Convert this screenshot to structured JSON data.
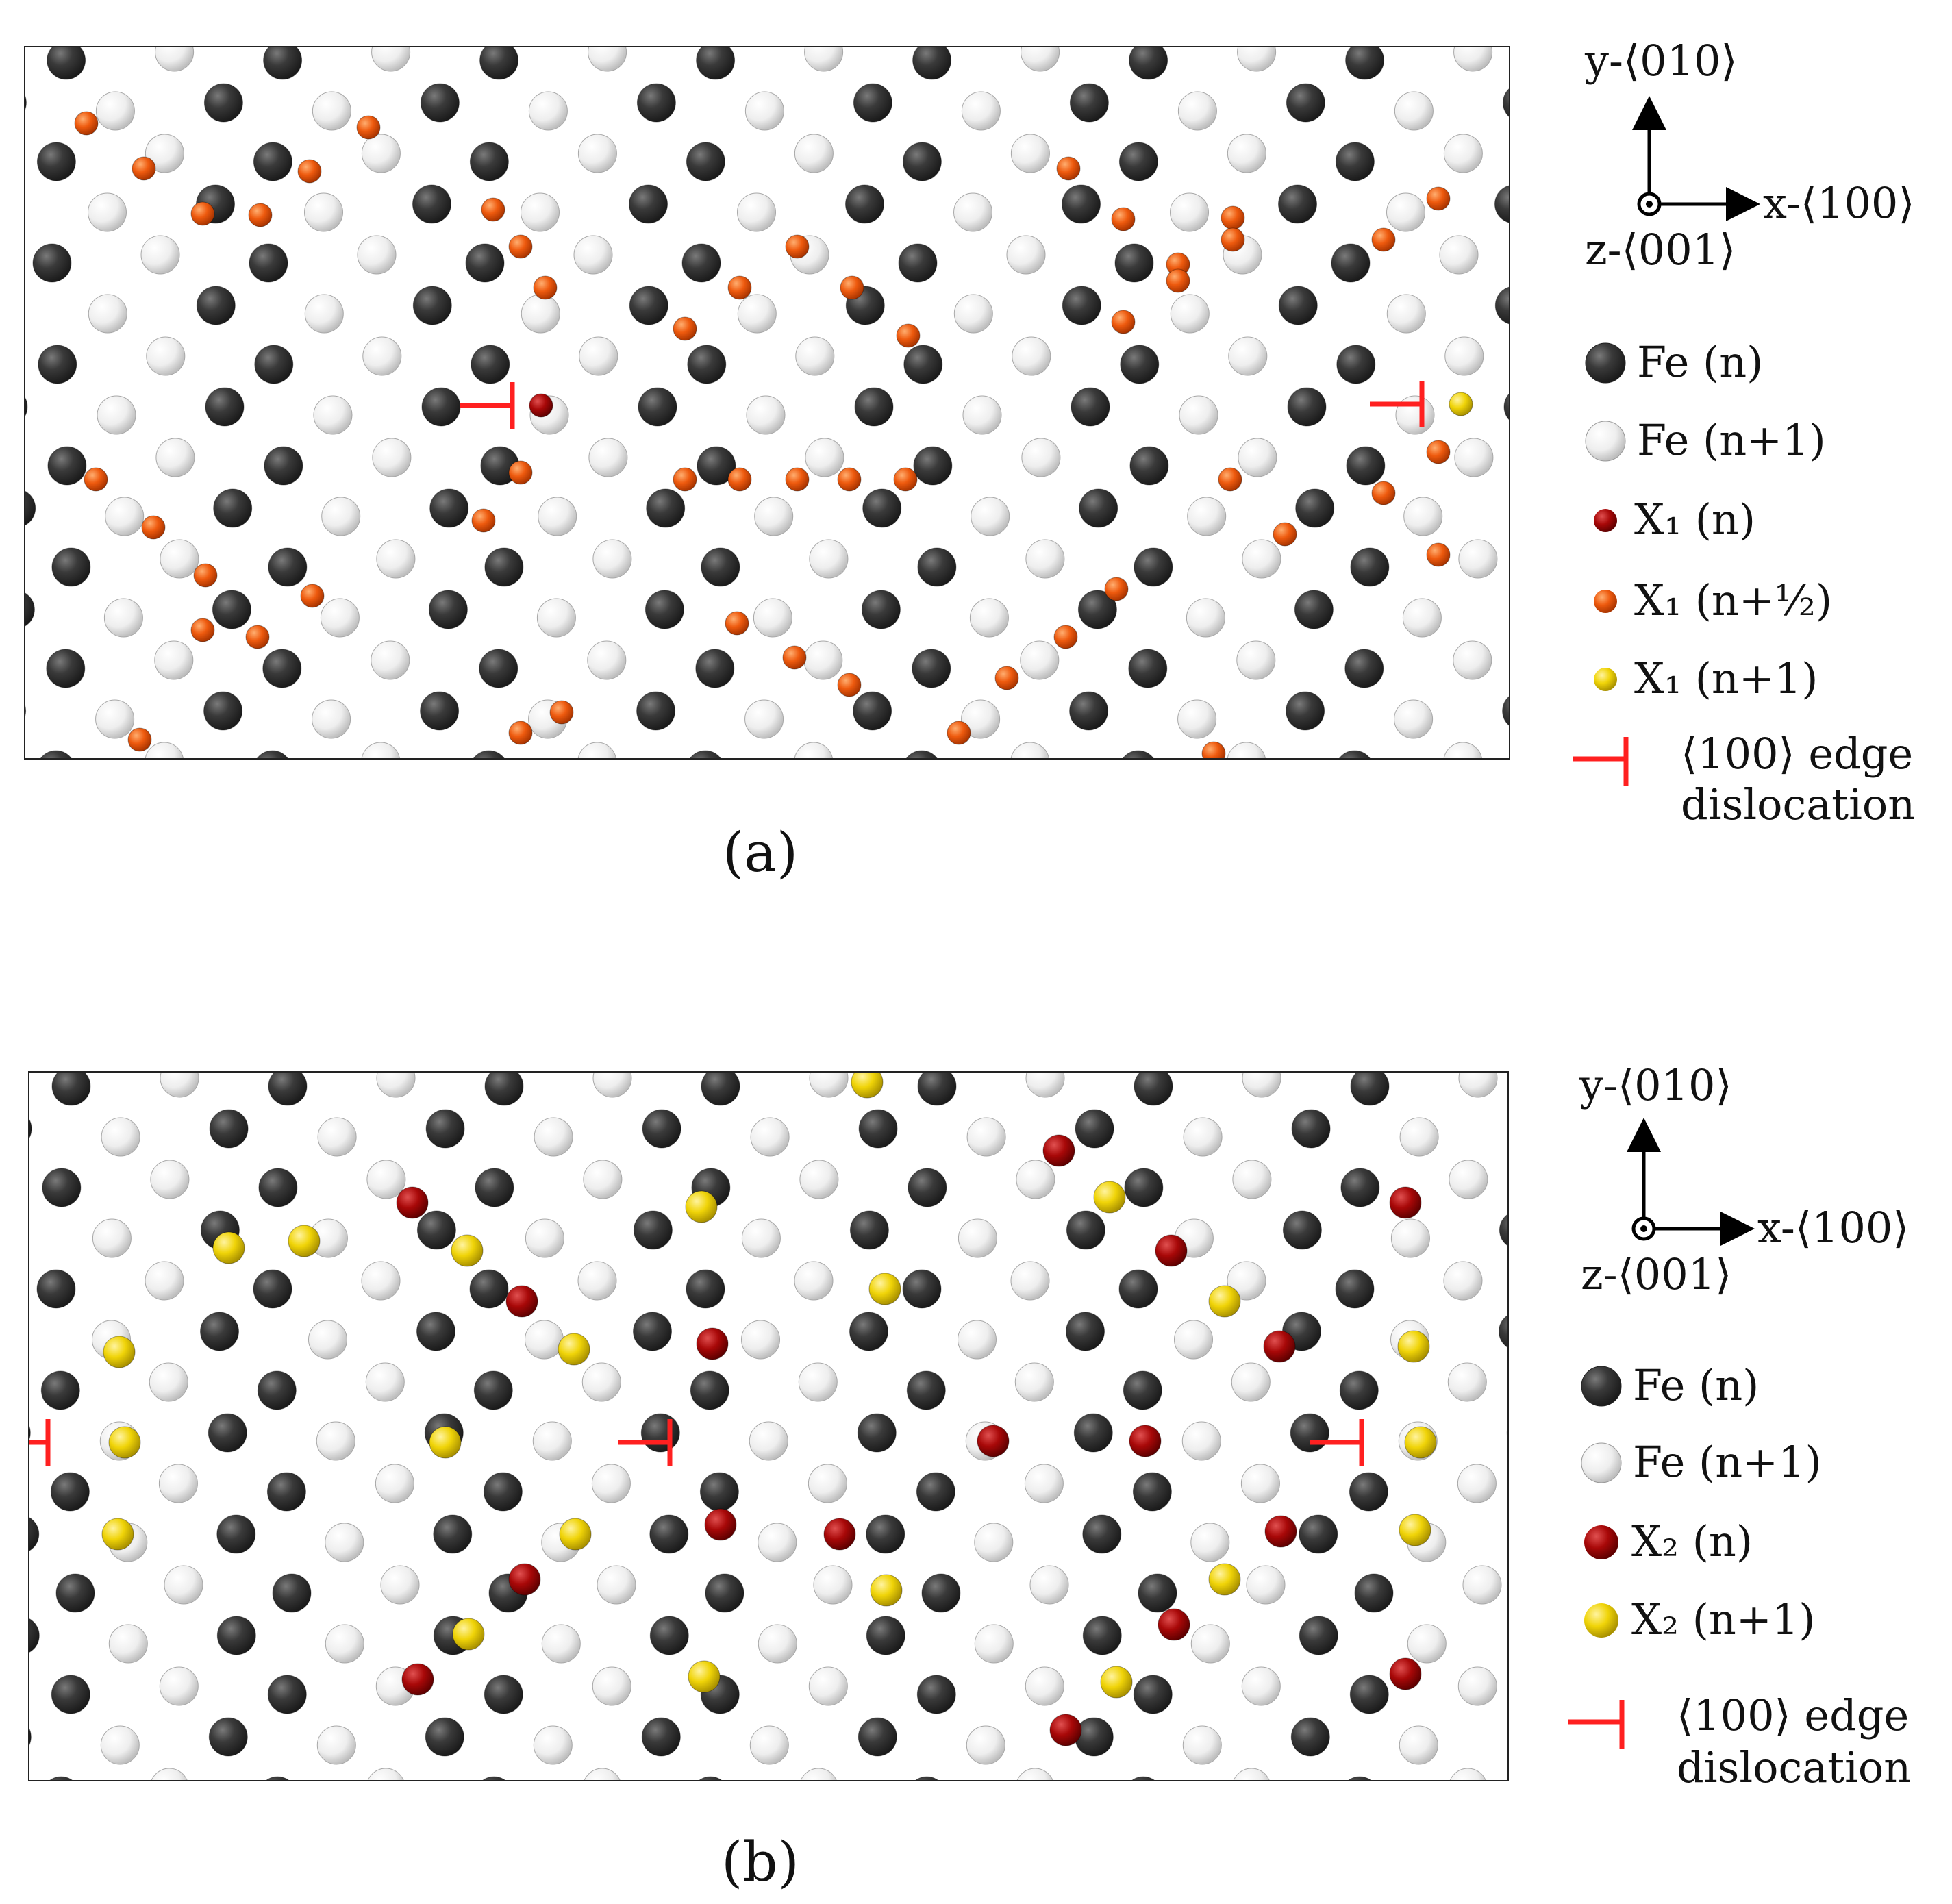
{
  "panels": [
    {
      "id": "a",
      "caption": "(a)",
      "axes": {
        "y": "y-⟨010⟩",
        "x": "x-⟨100⟩",
        "z": "z-⟨001⟩"
      },
      "legend": [
        {
          "symbol": "fe_n",
          "text": "Fe (n)"
        },
        {
          "symbol": "fe_n1",
          "text": "Fe (n+1)"
        },
        {
          "symbol": "x_dark",
          "text": "X₁ (n)"
        },
        {
          "symbol": "x_orange",
          "text": "X₁ (n+½)"
        },
        {
          "symbol": "x_yellow",
          "text": "X₁ (n+1)"
        }
      ],
      "dislocation_legend": [
        "⟨100⟩ edge",
        "dislocation"
      ]
    },
    {
      "id": "b",
      "caption": "(b)",
      "axes": {
        "y": "y-⟨010⟩",
        "x": "x-⟨100⟩",
        "z": "z-⟨001⟩"
      },
      "legend": [
        {
          "symbol": "fe_n",
          "text": "Fe (n)"
        },
        {
          "symbol": "fe_n1",
          "text": "Fe (n+1)"
        },
        {
          "symbol": "x_dark",
          "text": "X₂ (n)"
        },
        {
          "symbol": "x_yellow",
          "text": "X₂ (n+1)"
        }
      ],
      "dislocation_legend": [
        "⟨100⟩ edge",
        "dislocation"
      ]
    }
  ],
  "colors": {
    "fe_n": "#333333",
    "fe_n1": "#eeeeee",
    "x_dark": "#a80808",
    "x_orange": "#ee5a0e",
    "x_yellow": "#f0d408",
    "dislocation": "#ff2020"
  }
}
